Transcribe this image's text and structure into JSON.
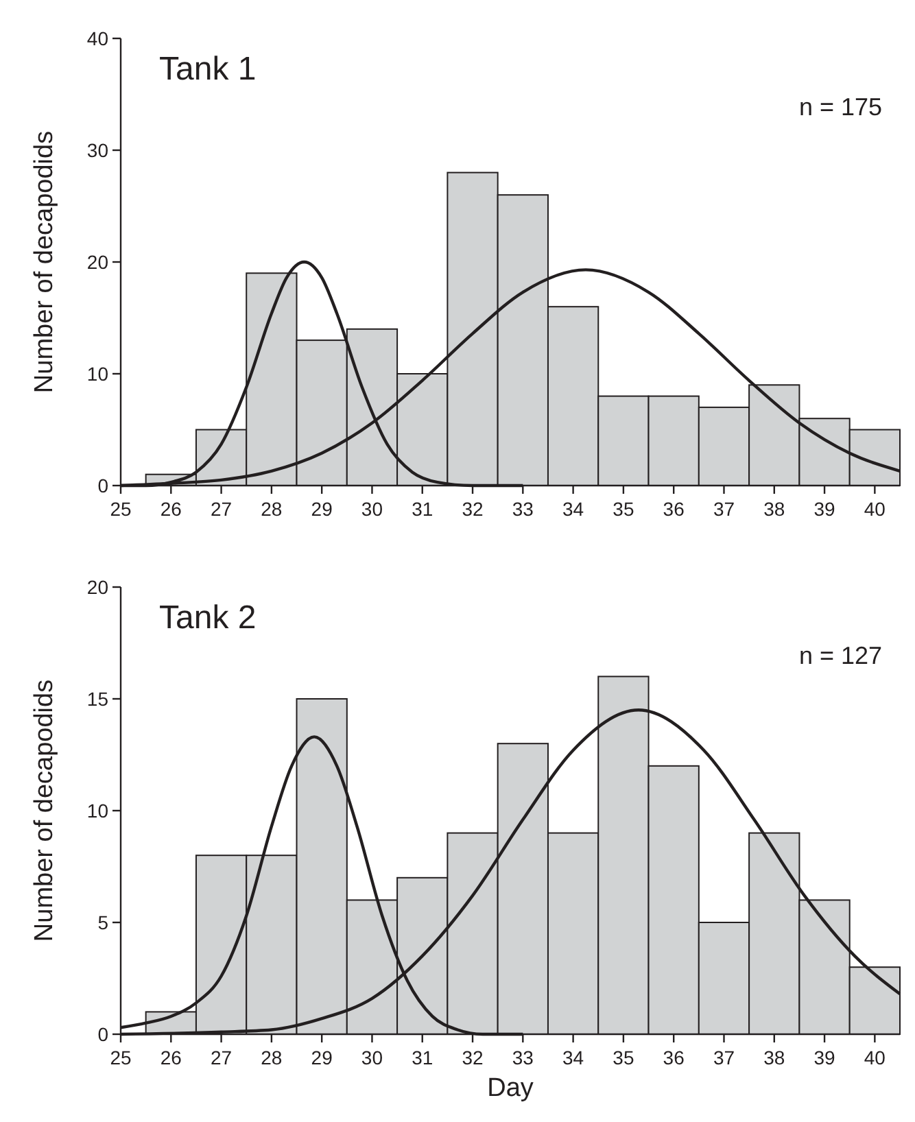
{
  "chart_data": [
    {
      "type": "histogram",
      "title": "Tank 1",
      "ylabel": "Number of decapodids",
      "annotations": [
        "n = 175"
      ],
      "bins": [
        25.5,
        26.5,
        27.5,
        28.5,
        29.5,
        30.5,
        31.5,
        32.5,
        33.5,
        34.5,
        35.5,
        36.5,
        37.5,
        38.5,
        39.5,
        40.5
      ],
      "values": [
        1,
        5,
        19,
        13,
        14,
        10,
        28,
        26,
        16,
        8,
        8,
        7,
        9,
        6,
        5
      ],
      "color": "#d1d3d4",
      "xlim": [
        25,
        40.5
      ],
      "xticks": [
        25,
        26,
        27,
        28,
        29,
        30,
        31,
        32,
        33,
        34,
        35,
        36,
        37,
        38,
        39,
        40
      ],
      "ylim": [
        0,
        40
      ],
      "yticks": [
        0,
        10,
        20,
        30,
        40
      ],
      "grid": false,
      "series": [
        {
          "type": "line",
          "color": "#231f20",
          "x": [
            25,
            25.5,
            26,
            26.5,
            27,
            27.5,
            28,
            28.3,
            28.65,
            29,
            29.3,
            29.8,
            30.3,
            30.8,
            31.3,
            32,
            33
          ],
          "values": [
            0,
            0,
            0.3,
            1.2,
            3.7,
            8.8,
            15.4,
            18.6,
            20,
            18.6,
            15.4,
            8.8,
            3.7,
            1.2,
            0.3,
            0,
            0
          ]
        },
        {
          "type": "line",
          "color": "#231f20",
          "x": [
            25,
            26,
            27,
            28,
            29,
            30,
            31,
            32,
            33,
            34.25,
            35.5,
            36.5,
            37.5,
            38.5,
            39.5,
            40.5
          ],
          "values": [
            0,
            0.2,
            0.5,
            1.3,
            2.9,
            5.6,
            9.4,
            13.6,
            17.3,
            19.3,
            17.3,
            13.6,
            9.4,
            5.6,
            2.9,
            1.3
          ]
        }
      ]
    },
    {
      "type": "histogram",
      "title": "Tank 2",
      "ylabel": "Number of decapodids",
      "xlabel": "Day",
      "annotations": [
        "n = 127"
      ],
      "bins": [
        25.5,
        26.5,
        27.5,
        28.5,
        29.5,
        30.5,
        31.5,
        32.5,
        33.5,
        34.5,
        35.5,
        36.5,
        37.5,
        38.5,
        39.5,
        40.5
      ],
      "values": [
        1,
        8,
        8,
        15,
        6,
        7,
        9,
        13,
        9,
        16,
        12,
        5,
        9,
        6,
        3
      ],
      "color": "#d1d3d4",
      "xlim": [
        25,
        40.5
      ],
      "xticks": [
        25,
        26,
        27,
        28,
        29,
        30,
        31,
        32,
        33,
        34,
        35,
        36,
        37,
        38,
        39,
        40
      ],
      "ylim": [
        0,
        20
      ],
      "yticks": [
        0,
        5,
        10,
        15,
        20
      ],
      "grid": false,
      "series": [
        {
          "type": "line",
          "color": "#231f20",
          "x": [
            25,
            25.5,
            26,
            26.5,
            27,
            27.5,
            28,
            28.4,
            28.85,
            29.3,
            29.7,
            30.2,
            30.7,
            31.2,
            31.7,
            32.2,
            33
          ],
          "values": [
            0.3,
            0.5,
            0.8,
            1.4,
            2.6,
            5.3,
            9.3,
            12,
            13.3,
            12,
            9.3,
            5.3,
            2.4,
            0.8,
            0.2,
            0,
            0
          ]
        },
        {
          "type": "line",
          "color": "#231f20",
          "x": [
            25,
            27,
            28,
            29,
            30,
            31,
            32,
            33,
            34,
            35.3,
            36.6,
            37.6,
            38.6,
            39.6,
            40.5
          ],
          "values": [
            0,
            0.1,
            0.2,
            0.7,
            1.6,
            3.5,
            6.2,
            9.6,
            12.7,
            14.5,
            12.7,
            9.6,
            6.2,
            3.5,
            1.8
          ]
        }
      ]
    }
  ]
}
